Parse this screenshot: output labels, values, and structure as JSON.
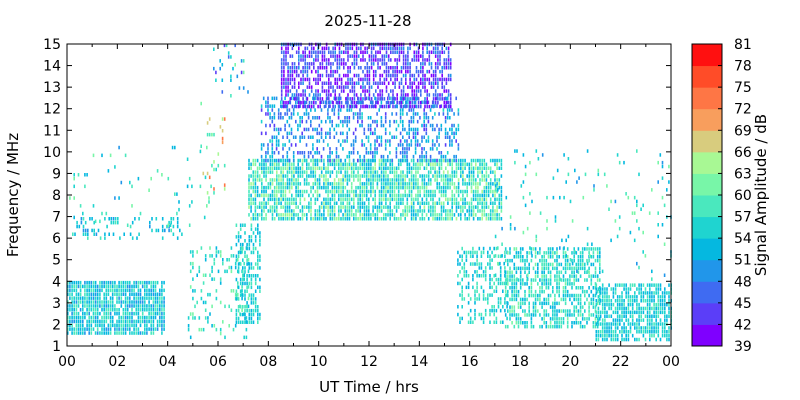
{
  "chart_data": {
    "type": "heatmap",
    "title": "2025-11-28",
    "xlabel": "UT Time / hrs",
    "ylabel": "Frequency / MHz",
    "colorbar_label": "Signal Amplitude / dB",
    "xlim": [
      0,
      24
    ],
    "ylim": [
      1,
      15
    ],
    "x_ticks": [
      "00",
      "02",
      "04",
      "06",
      "08",
      "10",
      "12",
      "14",
      "16",
      "18",
      "20",
      "22",
      "00"
    ],
    "y_ticks": [
      "1",
      "2",
      "3",
      "4",
      "5",
      "6",
      "7",
      "8",
      "9",
      "10",
      "11",
      "12",
      "13",
      "14",
      "15"
    ],
    "colorbar": {
      "range": [
        39,
        81
      ],
      "ticks": [
        "39",
        "42",
        "45",
        "48",
        "51",
        "54",
        "57",
        "60",
        "63",
        "66",
        "69",
        "72",
        "75",
        "78",
        "81"
      ],
      "colors": [
        "#7f00ff",
        "#5b3ef8",
        "#3f6bf2",
        "#2196ea",
        "#05b8e0",
        "#1fd4d0",
        "#4ae8be",
        "#78f6a8",
        "#a8f894",
        "#d8cc7e",
        "#f89e5d",
        "#fe7645",
        "#ff4c28",
        "#ff1010"
      ]
    },
    "regions": [
      {
        "t": [
          0.0,
          3.9
        ],
        "f": [
          1.5,
          3.9
        ],
        "a": [
          50,
          59
        ],
        "density": 0.85
      },
      {
        "t": [
          0.2,
          4.6
        ],
        "f": [
          5.9,
          6.9
        ],
        "a": [
          50,
          58
        ],
        "density": 0.25
      },
      {
        "t": [
          0.0,
          5.8
        ],
        "f": [
          6.5,
          10.1
        ],
        "a": [
          50,
          62
        ],
        "density": 0.04
      },
      {
        "t": [
          4.8,
          7.2
        ],
        "f": [
          1.3,
          5.5
        ],
        "a": [
          52,
          62
        ],
        "density": 0.18
      },
      {
        "t": [
          5.3,
          6.3
        ],
        "f": [
          8.0,
          12.2
        ],
        "a": [
          54,
          75
        ],
        "density": 0.08
      },
      {
        "t": [
          5.8,
          7.2
        ],
        "f": [
          12.5,
          15.0
        ],
        "a": [
          42,
          63
        ],
        "density": 0.1
      },
      {
        "t": [
          6.7,
          7.7
        ],
        "f": [
          2.0,
          6.5
        ],
        "a": [
          51,
          59
        ],
        "density": 0.55
      },
      {
        "t": [
          7.2,
          17.3
        ],
        "f": [
          6.8,
          9.5
        ],
        "a": [
          51,
          64
        ],
        "density": 0.75
      },
      {
        "t": [
          7.7,
          15.6
        ],
        "f": [
          9.5,
          12.5
        ],
        "a": [
          44,
          55
        ],
        "density": 0.4
      },
      {
        "t": [
          8.5,
          15.3
        ],
        "f": [
          12.0,
          15.0
        ],
        "a": [
          39,
          49
        ],
        "density": 0.65
      },
      {
        "t": [
          15.5,
          17.5
        ],
        "f": [
          2.0,
          5.5
        ],
        "a": [
          52,
          60
        ],
        "density": 0.4
      },
      {
        "t": [
          17.4,
          21.2
        ],
        "f": [
          1.8,
          5.5
        ],
        "a": [
          52,
          61
        ],
        "density": 0.6
      },
      {
        "t": [
          21.0,
          24.0
        ],
        "f": [
          1.2,
          3.8
        ],
        "a": [
          51,
          59
        ],
        "density": 0.75
      },
      {
        "t": [
          17.0,
          24.0
        ],
        "f": [
          4.0,
          10.0
        ],
        "a": [
          50,
          62
        ],
        "density": 0.05
      }
    ]
  }
}
